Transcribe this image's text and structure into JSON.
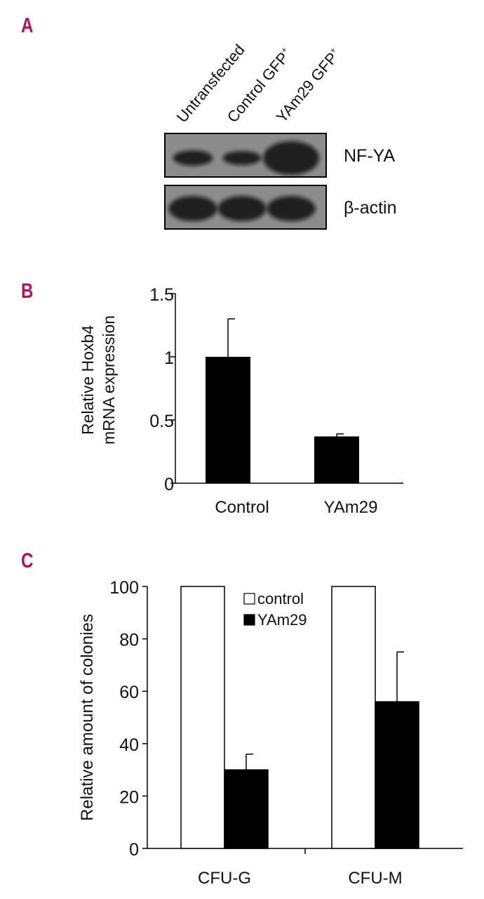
{
  "panels": {
    "a": "A",
    "b": "B",
    "c": "C"
  },
  "colors": {
    "panel_label": "#b0125b",
    "bar_dark": "#000000",
    "bar_light": "#ffffff",
    "blot_bg": "#8c8c8c",
    "blot_band": "#111111"
  },
  "blot": {
    "lanes": [
      "Untransfected",
      "Control GFP",
      "YAm29 GFP"
    ],
    "lane_superscripts": [
      "",
      "+",
      "+"
    ],
    "rows": [
      {
        "label": "NF-YA",
        "intensity": [
          0.35,
          0.3,
          1.0
        ]
      },
      {
        "label": "β-actin",
        "intensity": [
          0.7,
          0.7,
          0.7
        ]
      }
    ]
  },
  "chart_data": [
    {
      "type": "bar",
      "panel": "B",
      "categories": [
        "Control",
        "YAm29"
      ],
      "values": [
        1.0,
        0.37
      ],
      "errors": [
        0.3,
        0.02
      ],
      "ylabel_lines": [
        "Relative Hoxb4",
        "mRNA expression"
      ],
      "ylim": [
        0,
        1.5
      ],
      "yticks": [
        0,
        0.5,
        1,
        1.5
      ],
      "ytick_labels": [
        "0",
        "0.5",
        "1",
        "1.5"
      ],
      "grid": false
    },
    {
      "type": "bar",
      "panel": "C",
      "categories": [
        "CFU-G",
        "CFU-M"
      ],
      "series": [
        {
          "name": "control",
          "values": [
            100,
            100
          ],
          "errors": [
            0,
            0
          ]
        },
        {
          "name": "YAm29",
          "values": [
            30,
            56
          ],
          "errors": [
            6,
            19
          ]
        }
      ],
      "ylabel": "Relative amount of colonies",
      "ylim": [
        0,
        100
      ],
      "yticks": [
        0,
        20,
        40,
        60,
        80,
        100
      ],
      "legend_position": "top-center",
      "grid": false
    }
  ]
}
